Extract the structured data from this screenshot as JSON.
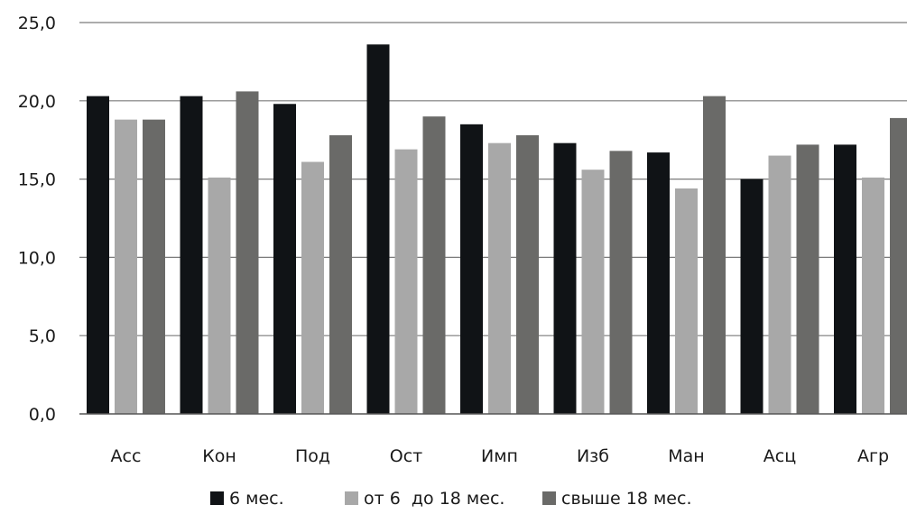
{
  "chart_data": {
    "type": "bar",
    "title": "",
    "xlabel": "",
    "ylabel": "",
    "ylim": [
      0,
      25
    ],
    "yticks": [
      "0,0",
      "5,0",
      "10,0",
      "15,0",
      "20,0",
      "25,0"
    ],
    "ytick_values": [
      0,
      5,
      10,
      15,
      20,
      25
    ],
    "grid": true,
    "legend_position": "bottom",
    "categories": [
      "Асс",
      "Кон",
      "Под",
      "Ост",
      "Имп",
      "Изб",
      "Ман",
      "Асц",
      "Агр"
    ],
    "series": [
      {
        "name": "6 мес.",
        "color": "#101316",
        "values": [
          20.3,
          20.3,
          19.8,
          23.6,
          18.5,
          17.3,
          16.7,
          15.0,
          17.2
        ]
      },
      {
        "name": "от 6  до 18 мес.",
        "color": "#a8a8a8",
        "values": [
          18.8,
          15.1,
          16.1,
          16.9,
          17.3,
          15.6,
          14.4,
          16.5,
          15.1
        ]
      },
      {
        "name": "свыше 18 мес.",
        "color": "#6a6a68",
        "values": [
          18.8,
          20.6,
          17.8,
          19.0,
          17.8,
          16.8,
          20.3,
          17.2,
          18.9
        ]
      }
    ]
  }
}
